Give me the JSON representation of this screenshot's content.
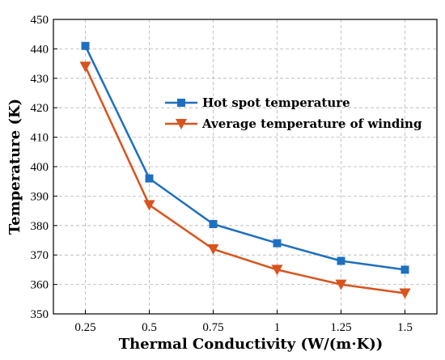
{
  "chart_data": {
    "type": "line",
    "xlabel": "Thermal Conductivity (W/(m·K))",
    "ylabel": "Temperature (K)",
    "x": [
      0.25,
      0.5,
      0.75,
      1,
      1.25,
      1.5
    ],
    "x_tick_labels": [
      "0.25",
      "0.5",
      "0.75",
      "1",
      "1.25",
      "1.5"
    ],
    "y_ticks": [
      350,
      360,
      370,
      380,
      390,
      400,
      410,
      420,
      430,
      440,
      450
    ],
    "xlim": [
      0.125,
      1.625
    ],
    "ylim": [
      350,
      450
    ],
    "grid": true,
    "legend_position": "upper-center",
    "series": [
      {
        "name": "Hot spot temperature",
        "values": [
          441,
          396,
          380.5,
          374,
          368,
          365
        ],
        "color": "#1f6fbf",
        "marker": "square"
      },
      {
        "name": "Average temperature of winding",
        "values": [
          434,
          387,
          372,
          365,
          360,
          357
        ],
        "color": "#d9531e",
        "marker": "triangle-down"
      }
    ]
  }
}
